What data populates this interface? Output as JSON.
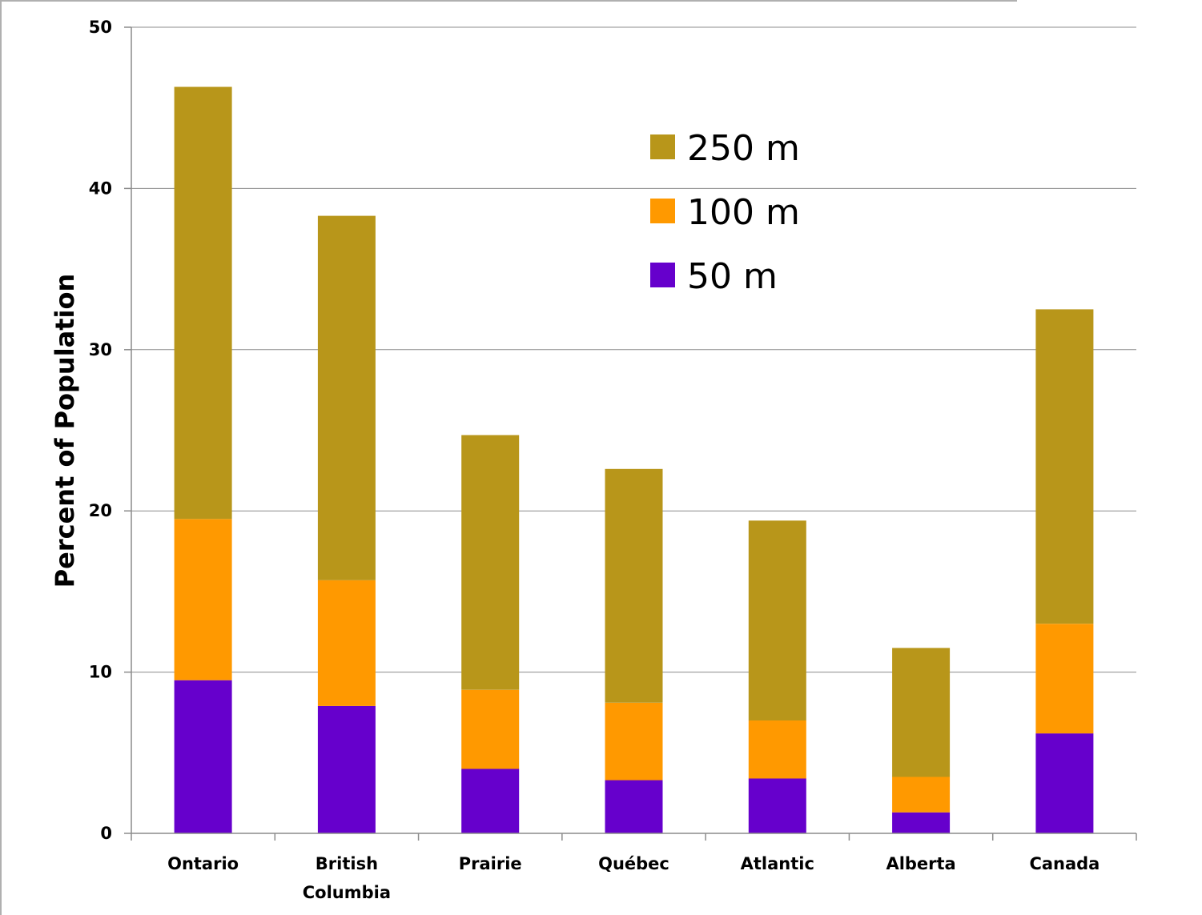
{
  "chart_data": {
    "type": "bar",
    "stacked": true,
    "title": "",
    "xlabel": "",
    "ylabel": "Percent of Population",
    "ylim": [
      0,
      50
    ],
    "yticks": [
      0,
      10,
      20,
      30,
      40,
      50
    ],
    "grid": true,
    "legend_position": "top-center",
    "categories": [
      "Ontario",
      "British Columbia",
      "Prairie",
      "Québec",
      "Atlantic",
      "Alberta",
      "Canada"
    ],
    "category_lines": [
      [
        "Ontario"
      ],
      [
        "British",
        "Columbia"
      ],
      [
        "Prairie"
      ],
      [
        "Québec"
      ],
      [
        "Atlantic"
      ],
      [
        "Alberta"
      ],
      [
        "Canada"
      ]
    ],
    "series": [
      {
        "name": "50 m",
        "color": "#6600cc",
        "values": [
          9.5,
          7.9,
          4.0,
          3.3,
          3.4,
          1.3,
          6.2
        ]
      },
      {
        "name": "100 m",
        "color": "#ff9900",
        "values": [
          10.0,
          7.8,
          4.9,
          4.8,
          3.6,
          2.2,
          6.8
        ]
      },
      {
        "name": "250 m",
        "color": "#b8961a",
        "values": [
          26.8,
          22.6,
          15.8,
          14.5,
          12.4,
          8.0,
          19.5
        ]
      }
    ],
    "legend_order": [
      "250 m",
      "100 m",
      "50 m"
    ]
  }
}
